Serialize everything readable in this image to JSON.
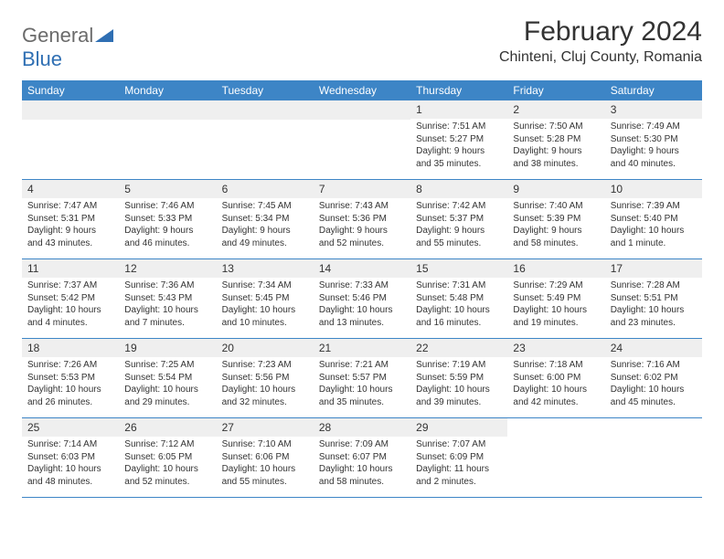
{
  "logo": {
    "part1": "General",
    "part2": "Blue"
  },
  "title": "February 2024",
  "location": "Chinteni, Cluj County, Romania",
  "colors": {
    "header_bg": "#3d85c6",
    "header_text": "#ffffff",
    "daynum_bg": "#efefef",
    "text": "#333333",
    "row_border": "#3d85c6",
    "logo_gray": "#6b6b6b",
    "logo_blue": "#2f6fb3"
  },
  "weekdays": [
    "Sunday",
    "Monday",
    "Tuesday",
    "Wednesday",
    "Thursday",
    "Friday",
    "Saturday"
  ],
  "weeks": [
    [
      null,
      null,
      null,
      null,
      {
        "n": "1",
        "sr": "Sunrise: 7:51 AM",
        "ss": "Sunset: 5:27 PM",
        "dl1": "Daylight: 9 hours",
        "dl2": "and 35 minutes."
      },
      {
        "n": "2",
        "sr": "Sunrise: 7:50 AM",
        "ss": "Sunset: 5:28 PM",
        "dl1": "Daylight: 9 hours",
        "dl2": "and 38 minutes."
      },
      {
        "n": "3",
        "sr": "Sunrise: 7:49 AM",
        "ss": "Sunset: 5:30 PM",
        "dl1": "Daylight: 9 hours",
        "dl2": "and 40 minutes."
      }
    ],
    [
      {
        "n": "4",
        "sr": "Sunrise: 7:47 AM",
        "ss": "Sunset: 5:31 PM",
        "dl1": "Daylight: 9 hours",
        "dl2": "and 43 minutes."
      },
      {
        "n": "5",
        "sr": "Sunrise: 7:46 AM",
        "ss": "Sunset: 5:33 PM",
        "dl1": "Daylight: 9 hours",
        "dl2": "and 46 minutes."
      },
      {
        "n": "6",
        "sr": "Sunrise: 7:45 AM",
        "ss": "Sunset: 5:34 PM",
        "dl1": "Daylight: 9 hours",
        "dl2": "and 49 minutes."
      },
      {
        "n": "7",
        "sr": "Sunrise: 7:43 AM",
        "ss": "Sunset: 5:36 PM",
        "dl1": "Daylight: 9 hours",
        "dl2": "and 52 minutes."
      },
      {
        "n": "8",
        "sr": "Sunrise: 7:42 AM",
        "ss": "Sunset: 5:37 PM",
        "dl1": "Daylight: 9 hours",
        "dl2": "and 55 minutes."
      },
      {
        "n": "9",
        "sr": "Sunrise: 7:40 AM",
        "ss": "Sunset: 5:39 PM",
        "dl1": "Daylight: 9 hours",
        "dl2": "and 58 minutes."
      },
      {
        "n": "10",
        "sr": "Sunrise: 7:39 AM",
        "ss": "Sunset: 5:40 PM",
        "dl1": "Daylight: 10 hours",
        "dl2": "and 1 minute."
      }
    ],
    [
      {
        "n": "11",
        "sr": "Sunrise: 7:37 AM",
        "ss": "Sunset: 5:42 PM",
        "dl1": "Daylight: 10 hours",
        "dl2": "and 4 minutes."
      },
      {
        "n": "12",
        "sr": "Sunrise: 7:36 AM",
        "ss": "Sunset: 5:43 PM",
        "dl1": "Daylight: 10 hours",
        "dl2": "and 7 minutes."
      },
      {
        "n": "13",
        "sr": "Sunrise: 7:34 AM",
        "ss": "Sunset: 5:45 PM",
        "dl1": "Daylight: 10 hours",
        "dl2": "and 10 minutes."
      },
      {
        "n": "14",
        "sr": "Sunrise: 7:33 AM",
        "ss": "Sunset: 5:46 PM",
        "dl1": "Daylight: 10 hours",
        "dl2": "and 13 minutes."
      },
      {
        "n": "15",
        "sr": "Sunrise: 7:31 AM",
        "ss": "Sunset: 5:48 PM",
        "dl1": "Daylight: 10 hours",
        "dl2": "and 16 minutes."
      },
      {
        "n": "16",
        "sr": "Sunrise: 7:29 AM",
        "ss": "Sunset: 5:49 PM",
        "dl1": "Daylight: 10 hours",
        "dl2": "and 19 minutes."
      },
      {
        "n": "17",
        "sr": "Sunrise: 7:28 AM",
        "ss": "Sunset: 5:51 PM",
        "dl1": "Daylight: 10 hours",
        "dl2": "and 23 minutes."
      }
    ],
    [
      {
        "n": "18",
        "sr": "Sunrise: 7:26 AM",
        "ss": "Sunset: 5:53 PM",
        "dl1": "Daylight: 10 hours",
        "dl2": "and 26 minutes."
      },
      {
        "n": "19",
        "sr": "Sunrise: 7:25 AM",
        "ss": "Sunset: 5:54 PM",
        "dl1": "Daylight: 10 hours",
        "dl2": "and 29 minutes."
      },
      {
        "n": "20",
        "sr": "Sunrise: 7:23 AM",
        "ss": "Sunset: 5:56 PM",
        "dl1": "Daylight: 10 hours",
        "dl2": "and 32 minutes."
      },
      {
        "n": "21",
        "sr": "Sunrise: 7:21 AM",
        "ss": "Sunset: 5:57 PM",
        "dl1": "Daylight: 10 hours",
        "dl2": "and 35 minutes."
      },
      {
        "n": "22",
        "sr": "Sunrise: 7:19 AM",
        "ss": "Sunset: 5:59 PM",
        "dl1": "Daylight: 10 hours",
        "dl2": "and 39 minutes."
      },
      {
        "n": "23",
        "sr": "Sunrise: 7:18 AM",
        "ss": "Sunset: 6:00 PM",
        "dl1": "Daylight: 10 hours",
        "dl2": "and 42 minutes."
      },
      {
        "n": "24",
        "sr": "Sunrise: 7:16 AM",
        "ss": "Sunset: 6:02 PM",
        "dl1": "Daylight: 10 hours",
        "dl2": "and 45 minutes."
      }
    ],
    [
      {
        "n": "25",
        "sr": "Sunrise: 7:14 AM",
        "ss": "Sunset: 6:03 PM",
        "dl1": "Daylight: 10 hours",
        "dl2": "and 48 minutes."
      },
      {
        "n": "26",
        "sr": "Sunrise: 7:12 AM",
        "ss": "Sunset: 6:05 PM",
        "dl1": "Daylight: 10 hours",
        "dl2": "and 52 minutes."
      },
      {
        "n": "27",
        "sr": "Sunrise: 7:10 AM",
        "ss": "Sunset: 6:06 PM",
        "dl1": "Daylight: 10 hours",
        "dl2": "and 55 minutes."
      },
      {
        "n": "28",
        "sr": "Sunrise: 7:09 AM",
        "ss": "Sunset: 6:07 PM",
        "dl1": "Daylight: 10 hours",
        "dl2": "and 58 minutes."
      },
      {
        "n": "29",
        "sr": "Sunrise: 7:07 AM",
        "ss": "Sunset: 6:09 PM",
        "dl1": "Daylight: 11 hours",
        "dl2": "and 2 minutes."
      },
      null,
      null
    ]
  ]
}
